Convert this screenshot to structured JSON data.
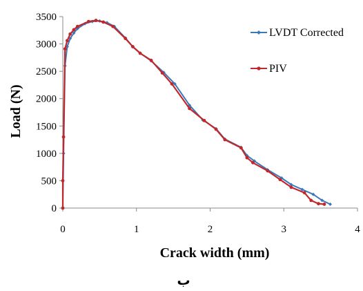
{
  "chart_data": {
    "type": "line",
    "title": "",
    "xlabel": "Crack width (mm)",
    "ylabel": "Load (N)",
    "xlim": [
      0,
      4
    ],
    "ylim": [
      0,
      3500
    ],
    "xticks": [
      "0",
      "1",
      "2",
      "3",
      "4"
    ],
    "yticks": [
      "0",
      "500",
      "1000",
      "1500",
      "2000",
      "2500",
      "3000",
      "3500"
    ],
    "grid": false,
    "legend_position": "right",
    "caption": "ب",
    "series": [
      {
        "name": "LVDT Corrected",
        "color": "#3b78b5",
        "x": [
          0,
          0.01,
          0.03,
          0.06,
          0.1,
          0.15,
          0.2,
          0.3,
          0.4,
          0.5,
          0.6,
          0.7,
          0.85,
          0.95,
          1.05,
          1.2,
          1.37,
          1.52,
          1.72,
          1.9,
          2.08,
          2.2,
          2.42,
          2.5,
          2.6,
          2.78,
          2.97,
          3.1,
          3.25,
          3.4,
          3.52,
          3.63
        ],
        "y": [
          0,
          1000,
          2600,
          2950,
          3100,
          3200,
          3280,
          3370,
          3410,
          3420,
          3390,
          3320,
          3110,
          2950,
          2830,
          2690,
          2480,
          2270,
          1880,
          1610,
          1450,
          1260,
          1110,
          960,
          860,
          700,
          550,
          430,
          340,
          250,
          140,
          70
        ]
      },
      {
        "name": "PIV",
        "color": "#c0282d",
        "x": [
          0,
          0,
          0.01,
          0.03,
          0.06,
          0.1,
          0.15,
          0.2,
          0.35,
          0.45,
          0.55,
          0.68,
          0.85,
          0.95,
          1.05,
          1.2,
          1.35,
          1.48,
          1.72,
          1.92,
          2.08,
          2.2,
          2.42,
          2.5,
          2.58,
          2.78,
          2.95,
          3.1,
          3.28,
          3.37,
          3.47,
          3.55
        ],
        "y": [
          0,
          500,
          1300,
          2910,
          3060,
          3180,
          3260,
          3320,
          3410,
          3430,
          3400,
          3320,
          3100,
          2950,
          2830,
          2700,
          2470,
          2270,
          1820,
          1600,
          1440,
          1250,
          1100,
          920,
          830,
          680,
          520,
          380,
          280,
          140,
          80,
          70
        ]
      }
    ]
  }
}
